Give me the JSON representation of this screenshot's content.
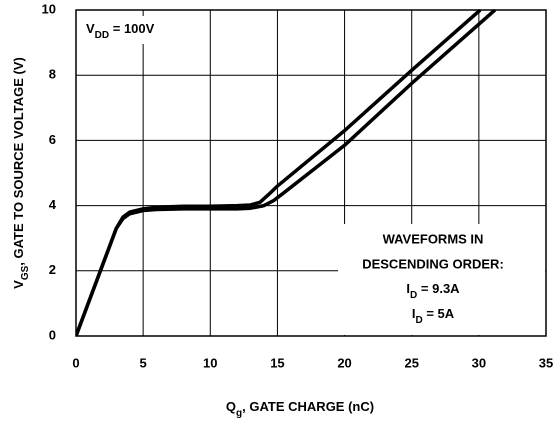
{
  "chart_data": {
    "type": "line",
    "xlabel": [
      "Q",
      "g",
      ", GATE CHARGE (nC)"
    ],
    "ylabel": [
      "V",
      "GS",
      ", GATE TO SOURCE VOLTAGE (V)"
    ],
    "note": [
      "V",
      "DD",
      " = 100V"
    ],
    "legend_title": [
      "WAVEFORMS IN",
      "DESCENDING ORDER:"
    ],
    "grid": true,
    "xlim": [
      0,
      35
    ],
    "xticks": [
      0,
      5,
      10,
      15,
      20,
      25,
      30,
      35
    ],
    "ylim": [
      0,
      10
    ],
    "yticks": [
      0,
      2,
      4,
      6,
      8,
      10
    ],
    "series": [
      {
        "label": [
          "I",
          "D",
          " = 9.3A"
        ],
        "color": "#000000",
        "x": [
          0,
          1,
          2,
          3,
          3.5,
          4,
          5,
          6,
          8,
          10,
          12,
          13,
          13.7,
          14.5,
          15,
          20,
          25,
          30.1
        ],
        "values": [
          0,
          1.1,
          2.2,
          3.3,
          3.65,
          3.8,
          3.9,
          3.95,
          3.98,
          3.98,
          4.0,
          4.02,
          4.1,
          4.4,
          4.6,
          6.3,
          8.15,
          10
        ]
      },
      {
        "label": [
          "I",
          "D",
          " = 5A"
        ],
        "color": "#000000",
        "x": [
          0,
          1,
          2,
          3,
          3.5,
          4,
          5,
          6,
          8,
          10,
          12,
          13,
          14,
          14.7,
          15.5,
          20,
          25,
          31.2
        ],
        "values": [
          0,
          1.1,
          2.2,
          3.3,
          3.6,
          3.75,
          3.85,
          3.88,
          3.9,
          3.9,
          3.9,
          3.92,
          4.0,
          4.15,
          4.4,
          5.85,
          7.75,
          10
        ]
      }
    ]
  }
}
